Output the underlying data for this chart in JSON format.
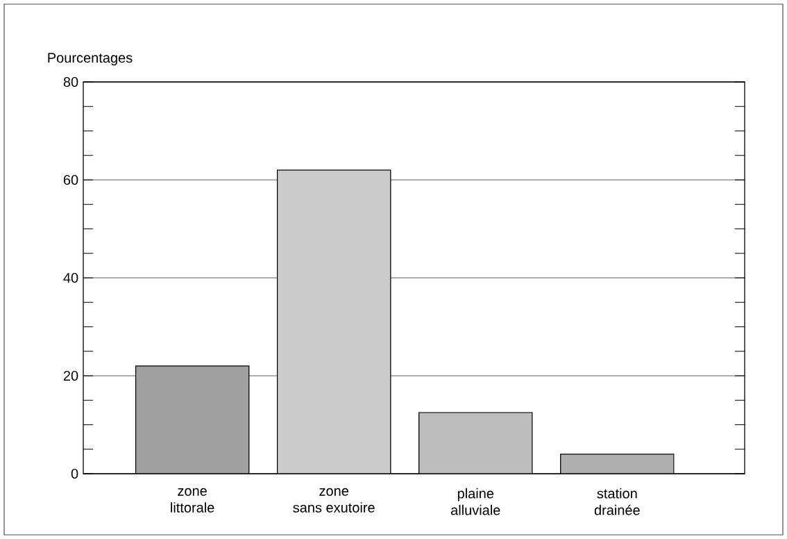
{
  "chart_data": {
    "type": "bar",
    "ylabel": "Pourcentages",
    "categories": [
      "zone littorale",
      "zone sans exutoire",
      "plaine alluviale",
      "station drainée"
    ],
    "values": [
      22,
      62,
      12.5,
      4
    ],
    "colors": [
      "#a0a0a0",
      "#cccccc",
      "#bdbdbd",
      "#b0b0b0"
    ],
    "ylim": [
      0,
      80
    ],
    "yticks": [
      0,
      20,
      40,
      60,
      80
    ],
    "grid": "y"
  }
}
